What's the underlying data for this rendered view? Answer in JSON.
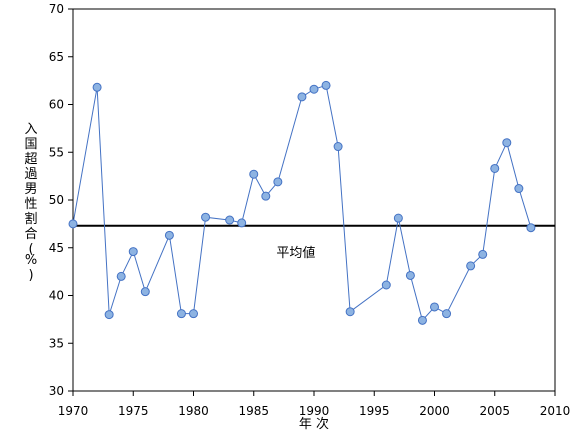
{
  "chart_data": {
    "type": "line",
    "title": "",
    "xlabel": "年 次",
    "ylabel": "入国超過男性割合(%)",
    "xlim": [
      1970,
      2010
    ],
    "ylim": [
      30,
      70
    ],
    "x_ticks": [
      1970,
      1975,
      1980,
      1985,
      1990,
      1995,
      2000,
      2005,
      2010
    ],
    "y_ticks": [
      30,
      35,
      40,
      45,
      50,
      55,
      60,
      65,
      70
    ],
    "grid": false,
    "legend": "none",
    "series": [
      {
        "color": "#4472c4",
        "marker_fill": "#8db3e2",
        "points": [
          [
            1970,
            47.5
          ],
          [
            1972,
            61.8
          ],
          [
            1973,
            38.0
          ],
          [
            1974,
            42.0
          ],
          [
            1975,
            44.6
          ],
          [
            1976,
            40.4
          ],
          [
            1978,
            46.3
          ],
          [
            1979,
            38.1
          ],
          [
            1980,
            38.1
          ],
          [
            1981,
            48.2
          ],
          [
            1983,
            47.9
          ],
          [
            1984,
            47.6
          ],
          [
            1985,
            52.7
          ],
          [
            1986,
            50.4
          ],
          [
            1987,
            51.9
          ],
          [
            1989,
            60.8
          ],
          [
            1990,
            61.6
          ],
          [
            1991,
            62.0
          ],
          [
            1992,
            55.6
          ],
          [
            1993,
            38.3
          ],
          [
            1996,
            41.1
          ],
          [
            1997,
            48.1
          ],
          [
            1998,
            42.1
          ],
          [
            1999,
            37.4
          ],
          [
            2000,
            38.8
          ],
          [
            2001,
            38.1
          ],
          [
            2003,
            43.1
          ],
          [
            2004,
            44.3
          ],
          [
            2005,
            53.3
          ],
          [
            2006,
            56.0
          ],
          [
            2007,
            51.2
          ],
          [
            2008,
            47.1
          ]
        ]
      }
    ],
    "reference_line": {
      "label": "平均値",
      "value": 47.3,
      "color": "#000000"
    }
  }
}
